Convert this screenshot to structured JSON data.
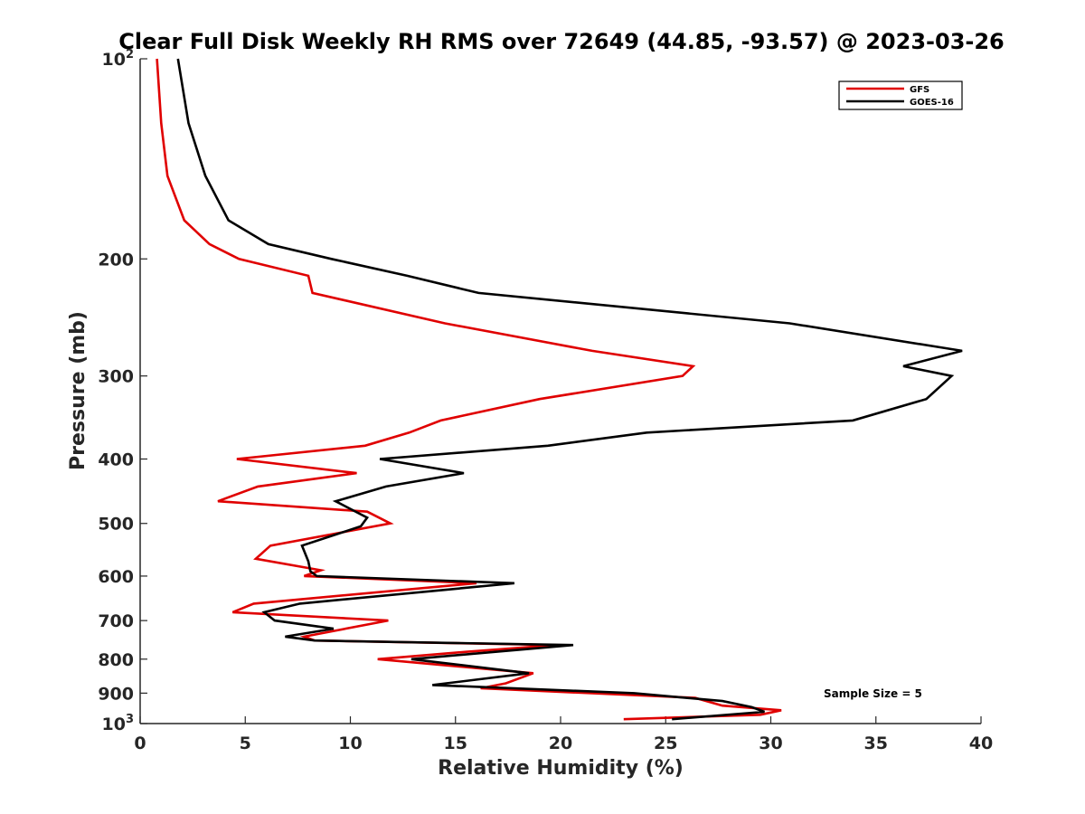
{
  "chart_data": {
    "type": "line",
    "title": "Clear Full Disk Weekly RH RMS over 72649 (44.85, -93.57) @ 2023-03-26",
    "xlabel": "Relative Humidity (%)",
    "ylabel": "Pressure (mb)",
    "xlim": [
      0,
      40
    ],
    "ylim": [
      100,
      1000
    ],
    "yscale": "log",
    "y_reversed": true,
    "x_ticks": [
      0,
      5,
      10,
      15,
      20,
      25,
      30,
      35,
      40
    ],
    "y_ticks": [
      {
        "value": 100,
        "label": "10",
        "sup": "2"
      },
      {
        "value": 200,
        "label": "200"
      },
      {
        "value": 300,
        "label": "300"
      },
      {
        "value": 400,
        "label": "400"
      },
      {
        "value": 500,
        "label": "500"
      },
      {
        "value": 600,
        "label": "600"
      },
      {
        "value": 700,
        "label": "700"
      },
      {
        "value": 800,
        "label": "800"
      },
      {
        "value": 900,
        "label": "900"
      },
      {
        "value": 1000,
        "label": "10",
        "sup": "3"
      }
    ],
    "grid": false,
    "legend_position": "top-right",
    "annotation": "Sample Size = 5",
    "series": [
      {
        "name": "GFS",
        "color": "#e00000",
        "points": [
          [
            0.8,
            100
          ],
          [
            1.0,
            125
          ],
          [
            1.3,
            150
          ],
          [
            2.1,
            175
          ],
          [
            3.3,
            190
          ],
          [
            4.7,
            200
          ],
          [
            8.0,
            212
          ],
          [
            8.2,
            225
          ],
          [
            14.5,
            250
          ],
          [
            21.5,
            275
          ],
          [
            26.3,
            290
          ],
          [
            25.8,
            300
          ],
          [
            19.0,
            325
          ],
          [
            14.3,
            350
          ],
          [
            12.8,
            365
          ],
          [
            10.7,
            382
          ],
          [
            4.6,
            400
          ],
          [
            10.3,
            420
          ],
          [
            5.6,
            440
          ],
          [
            3.7,
            463
          ],
          [
            10.8,
            480
          ],
          [
            11.9,
            500
          ],
          [
            6.2,
            540
          ],
          [
            5.5,
            565
          ],
          [
            8.6,
            588
          ],
          [
            7.8,
            600
          ],
          [
            16.0,
            615
          ],
          [
            5.4,
            660
          ],
          [
            4.4,
            680
          ],
          [
            11.8,
            700
          ],
          [
            7.8,
            740
          ],
          [
            8.3,
            750
          ],
          [
            19.8,
            762
          ],
          [
            15.5,
            780
          ],
          [
            11.3,
            800
          ],
          [
            18.7,
            840
          ],
          [
            17.4,
            870
          ],
          [
            16.2,
            885
          ],
          [
            26.4,
            915
          ],
          [
            27.7,
            940
          ],
          [
            30.5,
            955
          ],
          [
            29.5,
            970
          ],
          [
            23.0,
            985
          ]
        ]
      },
      {
        "name": "GOES-16",
        "color": "#000000",
        "points": [
          [
            1.8,
            100
          ],
          [
            2.3,
            125
          ],
          [
            3.1,
            150
          ],
          [
            4.2,
            175
          ],
          [
            6.1,
            190
          ],
          [
            9.1,
            200
          ],
          [
            12.7,
            212
          ],
          [
            16.1,
            225
          ],
          [
            30.9,
            250
          ],
          [
            39.1,
            275
          ],
          [
            36.3,
            290
          ],
          [
            38.6,
            300
          ],
          [
            37.4,
            325
          ],
          [
            33.9,
            350
          ],
          [
            24.1,
            365
          ],
          [
            19.4,
            382
          ],
          [
            11.4,
            400
          ],
          [
            15.4,
            420
          ],
          [
            11.7,
            440
          ],
          [
            9.3,
            463
          ],
          [
            10.8,
            490
          ],
          [
            10.5,
            505
          ],
          [
            7.7,
            540
          ],
          [
            8.0,
            570
          ],
          [
            8.1,
            590
          ],
          [
            8.4,
            600
          ],
          [
            17.8,
            615
          ],
          [
            7.6,
            660
          ],
          [
            5.9,
            680
          ],
          [
            6.4,
            700
          ],
          [
            9.2,
            720
          ],
          [
            6.9,
            740
          ],
          [
            8.3,
            750
          ],
          [
            20.6,
            762
          ],
          [
            12.9,
            800
          ],
          [
            18.5,
            840
          ],
          [
            13.9,
            875
          ],
          [
            23.5,
            900
          ],
          [
            27.7,
            925
          ],
          [
            29.1,
            945
          ],
          [
            29.7,
            960
          ],
          [
            25.3,
            985
          ]
        ]
      }
    ]
  }
}
